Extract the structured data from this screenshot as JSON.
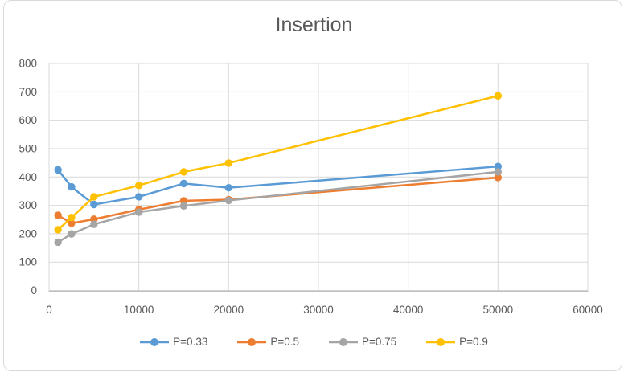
{
  "chart_data": {
    "type": "line",
    "title": "Insertion",
    "x": [
      1000,
      2500,
      5000,
      10000,
      15000,
      20000,
      50000
    ],
    "series": [
      {
        "name": "P=0.33",
        "color": "#5B9BD5",
        "values": [
          425,
          365,
          303,
          330,
          377,
          362,
          437
        ]
      },
      {
        "name": "P=0.5",
        "color": "#ED7D31",
        "values": [
          265,
          237,
          251,
          285,
          316,
          320,
          398
        ]
      },
      {
        "name": "P=0.75",
        "color": "#A5A5A5",
        "values": [
          170,
          199,
          233,
          276,
          298,
          317,
          418
        ]
      },
      {
        "name": "P=0.9",
        "color": "#FFC000",
        "values": [
          214,
          257,
          330,
          370,
          418,
          449,
          686
        ]
      }
    ],
    "xlim": [
      0,
      60000
    ],
    "ylim": [
      0,
      800
    ],
    "x_ticks": [
      0,
      10000,
      20000,
      30000,
      40000,
      50000,
      60000
    ],
    "y_ticks": [
      0,
      100,
      200,
      300,
      400,
      500,
      600,
      700,
      800
    ],
    "grid": true,
    "legend_position": "bottom",
    "style": {
      "gridline_color": "#D9D9D9",
      "axis_line_color": "#BFBFBF",
      "text_color": "#595959",
      "frame_border_color": "#D9D9D9",
      "background_color": "#FFFFFF"
    }
  }
}
